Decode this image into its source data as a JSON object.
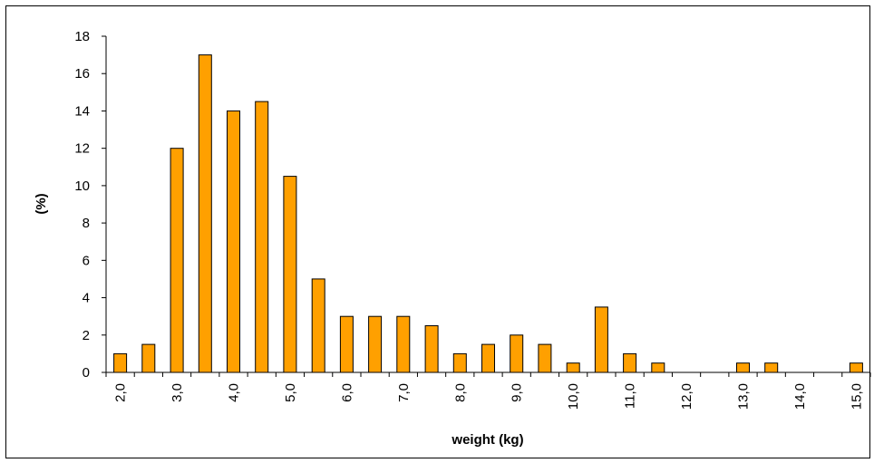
{
  "chart_data": {
    "type": "bar",
    "title": "",
    "xlabel": "weight (kg)",
    "ylabel": "(%)",
    "ylim": [
      0,
      18
    ],
    "yticks": [
      "0",
      "2",
      "4",
      "6",
      "8",
      "10",
      "12",
      "14",
      "16",
      "18"
    ],
    "xtick_labels": [
      "2,0",
      "3,0",
      "4,0",
      "5,0",
      "6,0",
      "7,0",
      "8,0",
      "9,0",
      "10,0",
      "11,0",
      "12,0",
      "13,0",
      "14,0",
      "15,0"
    ],
    "categories": [
      "2,0",
      "2,5",
      "3,0",
      "3,5",
      "4,0",
      "4,5",
      "5,0",
      "5,5",
      "6,0",
      "6,5",
      "7,0",
      "7,5",
      "8,0",
      "8,5",
      "9,0",
      "9,5",
      "10,0",
      "10,5",
      "11,0",
      "11,5",
      "12,0",
      "12,5",
      "13,0",
      "13,5",
      "14,0",
      "14,5",
      "15,0"
    ],
    "values": [
      1,
      1.5,
      12,
      17,
      14,
      14.5,
      10.5,
      5,
      3,
      3,
      3,
      2.5,
      1,
      1.5,
      2,
      1.5,
      0.5,
      3.5,
      1,
      0.5,
      0,
      0,
      0.5,
      0.5,
      0,
      0,
      0.5
    ],
    "bar_color": "#FFA000",
    "bar_edge_color": "#000000",
    "grid": false,
    "legend": false
  }
}
